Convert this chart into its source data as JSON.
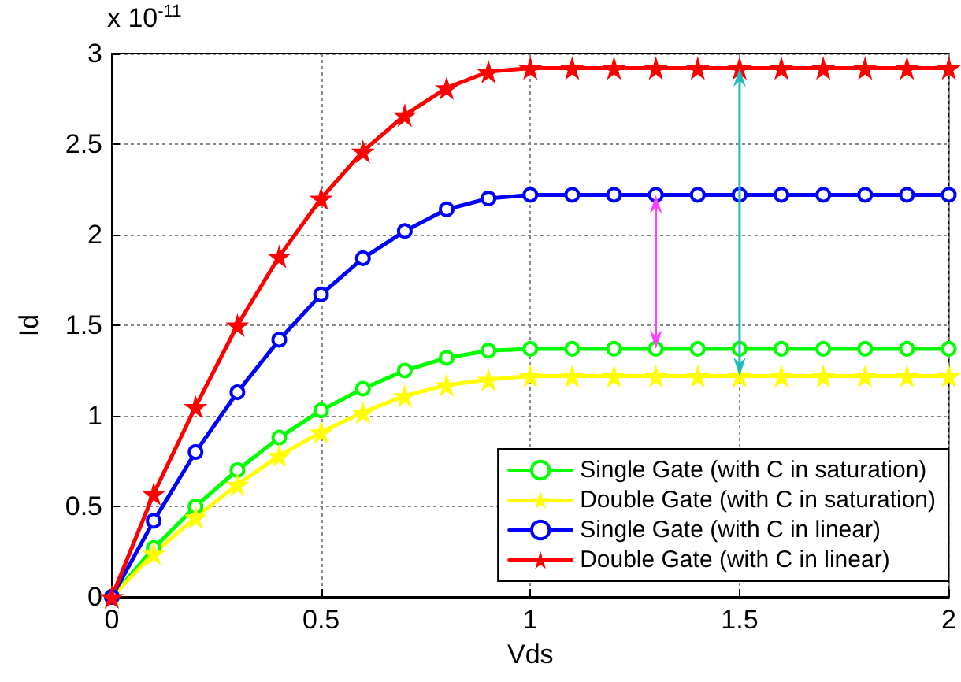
{
  "chart_data": {
    "type": "line",
    "xlabel": "Vds",
    "ylabel": "Id",
    "annotations": [
      "x 10$^{-11}$"
    ],
    "x": [
      0,
      0.1,
      0.2,
      0.3,
      0.4,
      0.5,
      0.6,
      0.7,
      0.8,
      0.9,
      1.0,
      1.1,
      1.2,
      1.3,
      1.4,
      1.5,
      1.6,
      1.7,
      1.8,
      1.9,
      2.0
    ],
    "series": [
      {
        "name": "Single Gate (with C in saturation)",
        "color": "#00ff00",
        "marker": "circle",
        "values": [
          0,
          0.27,
          0.5,
          0.7,
          0.88,
          1.03,
          1.15,
          1.25,
          1.32,
          1.36,
          1.37,
          1.37,
          1.37,
          1.37,
          1.37,
          1.37,
          1.37,
          1.37,
          1.37,
          1.37,
          1.37
        ]
      },
      {
        "name": "Double Gate (with C in saturation)",
        "color": "#ffff00",
        "marker": "star",
        "values": [
          0,
          0.24,
          0.44,
          0.62,
          0.78,
          0.91,
          1.02,
          1.11,
          1.17,
          1.2,
          1.22,
          1.22,
          1.22,
          1.22,
          1.22,
          1.22,
          1.22,
          1.22,
          1.22,
          1.22,
          1.22
        ]
      },
      {
        "name": "Single Gate (with C in linear)",
        "color": "#0000ff",
        "marker": "circle",
        "values": [
          0,
          0.42,
          0.8,
          1.13,
          1.42,
          1.67,
          1.87,
          2.02,
          2.14,
          2.2,
          2.22,
          2.22,
          2.22,
          2.22,
          2.22,
          2.22,
          2.22,
          2.22,
          2.22,
          2.22,
          2.22
        ]
      },
      {
        "name": "Double Gate (with C in linear)",
        "color": "#ff0000",
        "marker": "star",
        "values": [
          0,
          0.57,
          1.05,
          1.5,
          1.88,
          2.2,
          2.46,
          2.66,
          2.81,
          2.9,
          2.92,
          2.92,
          2.92,
          2.92,
          2.92,
          2.92,
          2.92,
          2.92,
          2.92,
          2.92,
          2.92
        ]
      }
    ],
    "xlim": [
      0,
      2
    ],
    "xticks": [
      0,
      0.5,
      1,
      1.5,
      2
    ],
    "ylim": [
      0,
      3
    ],
    "yticks": [
      0,
      0.5,
      1,
      1.5,
      2,
      2.5,
      3
    ],
    "grid": true,
    "legend": "bottom right",
    "line_style": "solid"
  }
}
